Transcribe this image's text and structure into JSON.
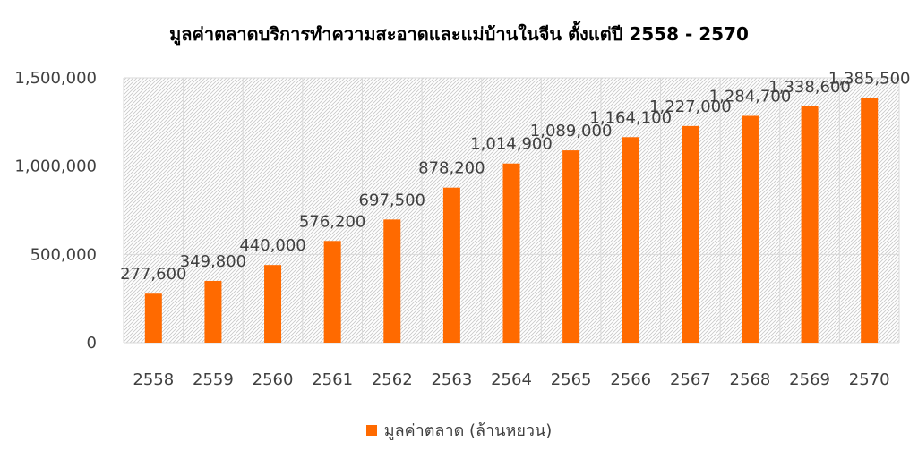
{
  "chart_data": {
    "type": "bar",
    "title": "มูลค่าตลาดบริการทำความสะอาดและแม่บ้านในจีน ตั้งแต่ปี 2558 - 2570",
    "categories": [
      "2558",
      "2559",
      "2560",
      "2561",
      "2562",
      "2563",
      "2564",
      "2565",
      "2566",
      "2567",
      "2568",
      "2569",
      "2570"
    ],
    "series": [
      {
        "name": "มูลค่าตลาด (ล้านหยวน)",
        "values": [
          277600,
          349800,
          440000,
          576200,
          697500,
          878200,
          1014900,
          1089000,
          1164100,
          1227000,
          1284700,
          1338600,
          1385500
        ],
        "value_labels": [
          "277,600",
          "349,800",
          "440,000",
          "576,200",
          "697,500",
          "878,200",
          "1,014,900",
          "1,089,000",
          "1,164,100",
          "1,227,000",
          "1,284,700",
          "1,338,600",
          "1,385,500"
        ],
        "color": "#ff6a00"
      }
    ],
    "y_ticks": [
      0,
      500000,
      1000000,
      1500000
    ],
    "y_tick_labels": [
      "0",
      "500,000",
      "1,000,000",
      "1,500,000"
    ],
    "ylim": [
      0,
      1500000
    ],
    "xlabel": "",
    "ylabel": "",
    "grid": true,
    "legend_position": "bottom"
  }
}
